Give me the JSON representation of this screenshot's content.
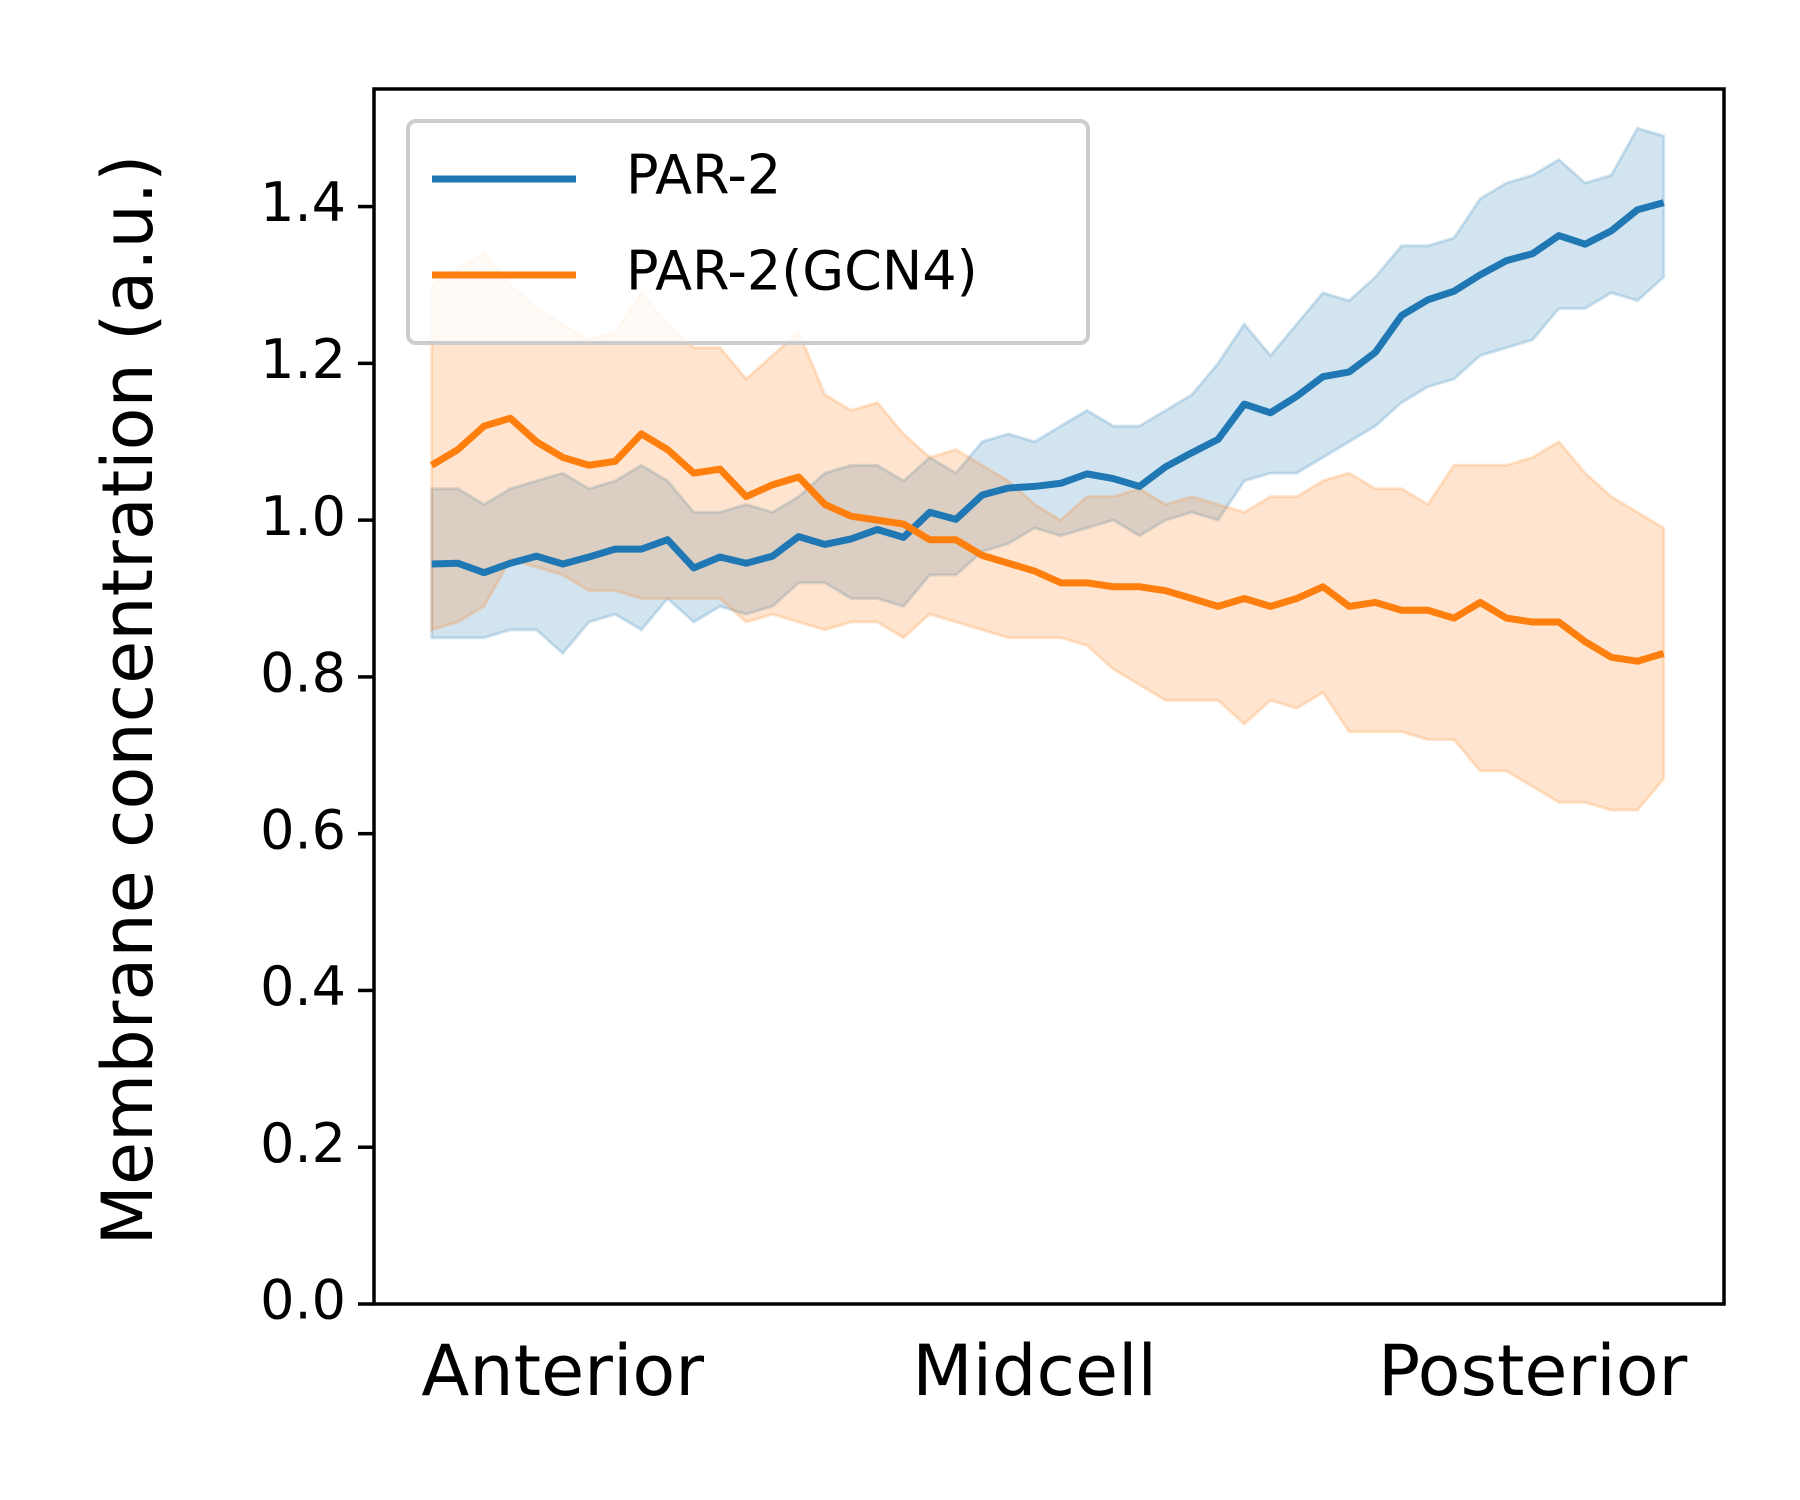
{
  "chart_data": {
    "type": "line",
    "ylabel": "Membrane concentration (a.u.)",
    "x": [
      0,
      1,
      2,
      3,
      4,
      5,
      6,
      7,
      8,
      9,
      10,
      11,
      12,
      13,
      14,
      15,
      16,
      17,
      18,
      19,
      20,
      21,
      22,
      23,
      24,
      25,
      26,
      27,
      28,
      29,
      30,
      31,
      32,
      33,
      34,
      35,
      36,
      37,
      38,
      39,
      40,
      41,
      42,
      43,
      44,
      45,
      46,
      47
    ],
    "xlim": [
      -2.2,
      49.3
    ],
    "xticks": [
      {
        "value": 5,
        "label": "Anterior"
      },
      {
        "value": 23,
        "label": "Midcell"
      },
      {
        "value": 42,
        "label": "Posterior"
      }
    ],
    "ylim": [
      0,
      1.55
    ],
    "yticks": [
      {
        "value": 0,
        "label": "0.0"
      },
      0.2,
      0.4,
      0.6,
      0.8,
      {
        "value": 1,
        "label": "1.0"
      },
      1.2,
      1.4
    ],
    "legend": "upper left",
    "series": [
      {
        "name": "PAR-2",
        "color": "#1f77b4",
        "values": [
          0.944,
          0.945,
          0.933,
          0.945,
          0.954,
          0.944,
          0.953,
          0.963,
          0.963,
          0.975,
          0.939,
          0.953,
          0.945,
          0.954,
          0.979,
          0.969,
          0.976,
          0.988,
          0.978,
          1.01,
          1.001,
          1.032,
          1.041,
          1.043,
          1.047,
          1.059,
          1.053,
          1.043,
          1.068,
          1.086,
          1.103,
          1.148,
          1.137,
          1.158,
          1.183,
          1.189,
          1.214,
          1.261,
          1.281,
          1.292,
          1.313,
          1.331,
          1.34,
          1.363,
          1.352,
          1.369,
          1.396,
          1.405
        ],
        "upper": [
          1.04,
          1.04,
          1.02,
          1.04,
          1.05,
          1.06,
          1.04,
          1.05,
          1.07,
          1.05,
          1.01,
          1.01,
          1.02,
          1.01,
          1.03,
          1.06,
          1.07,
          1.07,
          1.05,
          1.08,
          1.06,
          1.1,
          1.11,
          1.1,
          1.12,
          1.14,
          1.12,
          1.12,
          1.14,
          1.16,
          1.2,
          1.25,
          1.21,
          1.25,
          1.29,
          1.28,
          1.31,
          1.35,
          1.35,
          1.36,
          1.41,
          1.43,
          1.44,
          1.46,
          1.43,
          1.44,
          1.5,
          1.49
        ],
        "lower": [
          0.85,
          0.85,
          0.85,
          0.86,
          0.86,
          0.83,
          0.87,
          0.88,
          0.86,
          0.9,
          0.87,
          0.89,
          0.88,
          0.89,
          0.92,
          0.92,
          0.9,
          0.9,
          0.89,
          0.93,
          0.93,
          0.96,
          0.97,
          0.99,
          0.98,
          0.99,
          1.0,
          0.98,
          1.0,
          1.01,
          1.0,
          1.05,
          1.06,
          1.06,
          1.08,
          1.1,
          1.12,
          1.15,
          1.17,
          1.18,
          1.21,
          1.22,
          1.23,
          1.27,
          1.27,
          1.29,
          1.28,
          1.31
        ]
      },
      {
        "name": "PAR-2(GCN4)",
        "color": "#ff7f0e",
        "values": [
          1.07,
          1.09,
          1.12,
          1.13,
          1.1,
          1.08,
          1.07,
          1.075,
          1.11,
          1.09,
          1.06,
          1.065,
          1.03,
          1.045,
          1.055,
          1.02,
          1.005,
          1.0,
          0.995,
          0.975,
          0.975,
          0.955,
          0.945,
          0.935,
          0.92,
          0.92,
          0.915,
          0.915,
          0.91,
          0.9,
          0.89,
          0.9,
          0.89,
          0.9,
          0.915,
          0.89,
          0.895,
          0.885,
          0.885,
          0.875,
          0.895,
          0.875,
          0.87,
          0.87,
          0.845,
          0.825,
          0.82,
          0.83
        ],
        "upper": [
          1.3,
          1.32,
          1.34,
          1.3,
          1.27,
          1.25,
          1.23,
          1.24,
          1.29,
          1.25,
          1.22,
          1.22,
          1.18,
          1.21,
          1.24,
          1.16,
          1.14,
          1.15,
          1.11,
          1.08,
          1.09,
          1.07,
          1.05,
          1.02,
          1.0,
          1.03,
          1.03,
          1.04,
          1.02,
          1.03,
          1.02,
          1.01,
          1.03,
          1.03,
          1.05,
          1.06,
          1.04,
          1.04,
          1.02,
          1.07,
          1.07,
          1.07,
          1.08,
          1.1,
          1.06,
          1.03,
          1.01,
          0.99
        ],
        "lower": [
          0.86,
          0.87,
          0.89,
          0.95,
          0.94,
          0.93,
          0.91,
          0.91,
          0.9,
          0.9,
          0.9,
          0.9,
          0.87,
          0.88,
          0.87,
          0.86,
          0.87,
          0.87,
          0.85,
          0.88,
          0.87,
          0.86,
          0.85,
          0.85,
          0.85,
          0.84,
          0.81,
          0.79,
          0.77,
          0.77,
          0.77,
          0.74,
          0.77,
          0.76,
          0.78,
          0.73,
          0.73,
          0.73,
          0.72,
          0.72,
          0.68,
          0.68,
          0.66,
          0.64,
          0.64,
          0.63,
          0.63,
          0.67
        ]
      }
    ]
  }
}
